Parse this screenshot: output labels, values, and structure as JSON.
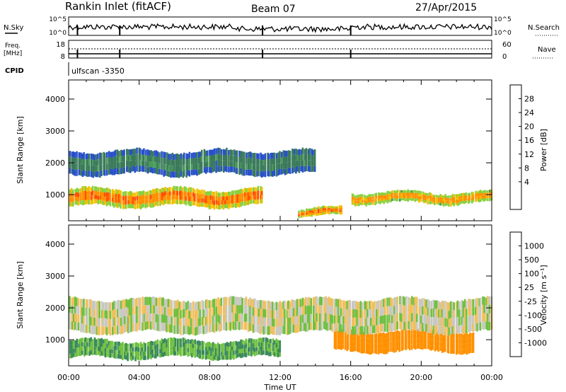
{
  "header": {
    "station": "Rankin Inlet (fitACF)",
    "beam": "Beam 07",
    "date": "27/Apr/2015"
  },
  "status_panels": {
    "nsky_label": "N.Sky",
    "nsearch_label": "N.Search",
    "nsky_ticks": [
      "10^5",
      "10^0"
    ],
    "nsearch_ticks": [
      "10^5",
      "10^0"
    ],
    "freq_label_1": "Freq.",
    "freq_label_2": "[MHz]",
    "freq_ticks": [
      "18",
      "8"
    ],
    "nave_label": "Nave",
    "nave_ticks": [
      "60",
      "0"
    ],
    "cpid_label": "CPID",
    "cpid_value": "ulfscan -3350"
  },
  "colorbars": {
    "power": {
      "label": "Power [dB]",
      "ticks": [
        "28",
        "24",
        "20",
        "16",
        "12",
        "8",
        "4"
      ],
      "colors": [
        "#0000ff",
        "#2850c8",
        "#3a7a5a",
        "#4a9a5a",
        "#8ad040",
        "#f0c000",
        "#ff9000",
        "#ff5000",
        "#ff0000"
      ]
    },
    "velocity": {
      "label": "Velocity [m s⁻¹]",
      "ticks": [
        "1000",
        "500",
        "100",
        "25",
        "-25",
        "-100",
        "-500",
        "-1000"
      ],
      "colors": [
        "#2040c0",
        "#3a6aa0",
        "#3a8a5a",
        "#70c040",
        "#c8c8c0",
        "#f0c060",
        "#ff9000",
        "#ff5000",
        "#ff0000"
      ]
    }
  },
  "chart_data": [
    {
      "type": "heatmap",
      "title": "",
      "xlabel": "Time UT",
      "ylabel": "Slant Range [km]",
      "xlim": [
        "00:00",
        "24:00"
      ],
      "ylim": [
        180,
        4600
      ],
      "x_ticks": [
        "00:00",
        "04:00",
        "08:00",
        "12:00",
        "16:00",
        "20:00",
        "00:00"
      ],
      "y_ticks": [
        1000,
        2000,
        3000,
        4000
      ],
      "colorbar": "Power [dB]",
      "colorbar_range": [
        0,
        30
      ],
      "features": [
        {
          "name": "strong band",
          "t_start": 0,
          "t_end": 11,
          "range_km": [
            600,
            1200
          ],
          "power_db": 28
        },
        {
          "name": "near-range patch",
          "t_start": 13,
          "t_end": 15.5,
          "range_km": [
            300,
            600
          ],
          "power_db": 28
        },
        {
          "name": "evening band",
          "t_start": 16,
          "t_end": 24,
          "range_km": [
            700,
            1100
          ],
          "power_db": 26
        },
        {
          "name": "upper echoes",
          "t_start": 0,
          "t_end": 14,
          "range_km": [
            1600,
            2400
          ],
          "power_db": 12
        }
      ]
    },
    {
      "type": "heatmap",
      "title": "",
      "xlabel": "Time UT",
      "ylabel": "Slant Range [km]",
      "xlim": [
        "00:00",
        "24:00"
      ],
      "ylim": [
        180,
        4600
      ],
      "x_ticks": [
        "00:00",
        "04:00",
        "08:00",
        "12:00",
        "16:00",
        "20:00",
        "00:00"
      ],
      "y_ticks": [
        1000,
        2000,
        3000,
        4000
      ],
      "colorbar": "Velocity [m s⁻¹]",
      "colorbar_range": [
        -1000,
        1000
      ],
      "features": [
        {
          "name": "positive flow",
          "t_start": 0,
          "t_end": 12,
          "range_km": [
            400,
            1000
          ],
          "velocity": 100
        },
        {
          "name": "negative flow",
          "t_start": 15,
          "t_end": 23,
          "range_km": [
            600,
            1300
          ],
          "velocity": -300
        },
        {
          "name": "low-velocity echoes",
          "t_start": 0,
          "t_end": 24,
          "range_km": [
            1200,
            2300
          ],
          "velocity": 0
        }
      ]
    }
  ]
}
